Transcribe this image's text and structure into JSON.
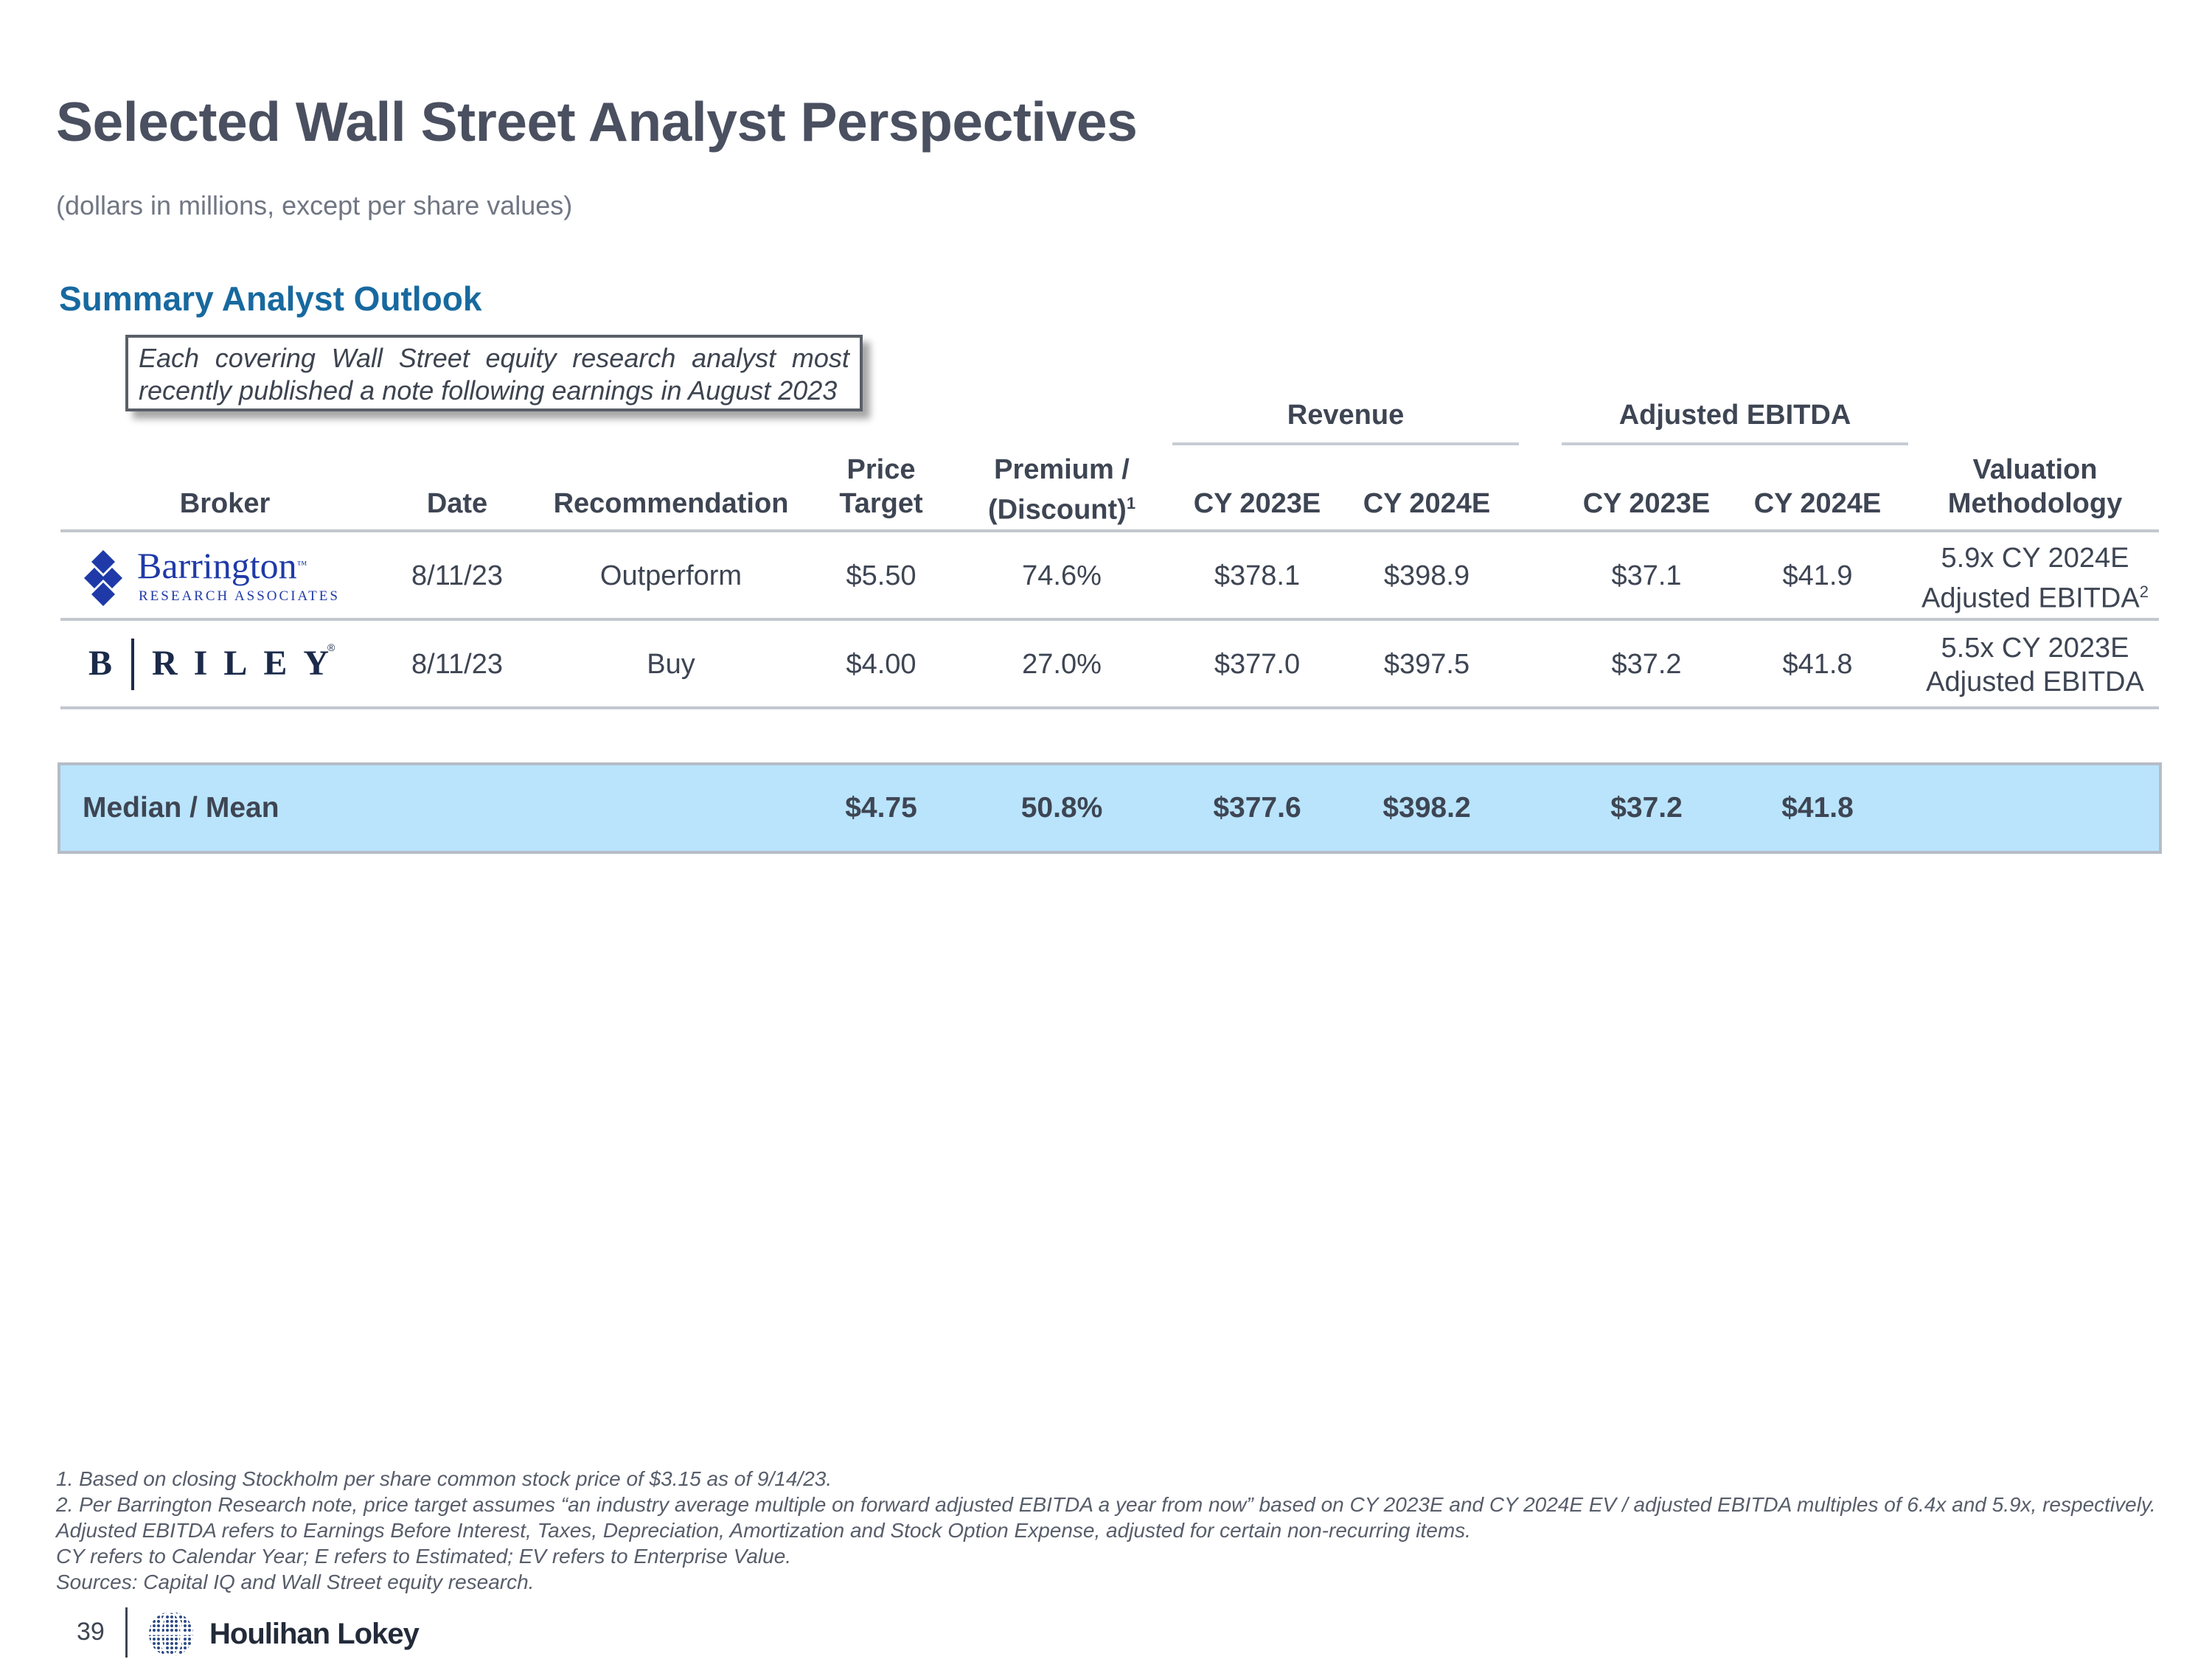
{
  "page": {
    "title": "Selected Wall Street Analyst Perspectives",
    "subtitle": "(dollars in millions, except per share values)",
    "section_title": "Summary Analyst Outlook",
    "note_line1_words": [
      "Each",
      "covering",
      "Wall",
      "Street",
      "equity",
      "research",
      "analyst",
      "most"
    ],
    "note_line2": "recently published a note following earnings in August 2023"
  },
  "table": {
    "group_revenue": "Revenue",
    "group_ebitda": "Adjusted EBITDA",
    "headers": {
      "broker": "Broker",
      "date": "Date",
      "recommendation": "Recommendation",
      "price_target_1": "Price",
      "price_target_2": "Target",
      "premium_1": "Premium /",
      "premium_2": "(Discount)",
      "premium_sup": "1",
      "rev_2023": "CY 2023E",
      "rev_2024": "CY 2024E",
      "ebitda_2023": "CY 2023E",
      "ebitda_2024": "CY 2024E",
      "valuation_1": "Valuation",
      "valuation_2": "Methodology"
    },
    "rows": [
      {
        "logo_name": "Barrington",
        "logo_tagline": "RESEARCH ASSOCIATES",
        "logo_tm": "™",
        "date": "8/11/23",
        "recommendation": "Outperform",
        "price_target": "$5.50",
        "premium": "74.6%",
        "rev_2023": "$378.1",
        "rev_2024": "$398.9",
        "ebitda_2023": "$37.1",
        "ebitda_2024": "$41.9",
        "valuation_1": "5.9x CY 2024E",
        "valuation_2": "Adjusted EBITDA",
        "valuation_sup": "2"
      },
      {
        "logo_b": "B",
        "logo_name": "RILEY",
        "logo_tm": "®",
        "date": "8/11/23",
        "recommendation": "Buy",
        "price_target": "$4.00",
        "premium": "27.0%",
        "rev_2023": "$377.0",
        "rev_2024": "$397.5",
        "ebitda_2023": "$37.2",
        "ebitda_2024": "$41.8",
        "valuation_1": "5.5x CY 2023E",
        "valuation_2": "Adjusted EBITDA"
      }
    ],
    "summary": {
      "label": "Median / Mean",
      "price_target": "$4.75",
      "premium": "50.8%",
      "rev_2023": "$377.6",
      "rev_2024": "$398.2",
      "ebitda_2023": "$37.2",
      "ebitda_2024": "$41.8"
    }
  },
  "footnotes": [
    "1.  Based on closing Stockholm per share common stock price of $3.15 as of 9/14/23.",
    "2.  Per Barrington Research note, price target assumes “an industry average multiple on forward adjusted EBITDA a year from now” based on CY 2023E and CY 2024E EV / adjusted EBITDA multiples of 6.4x and 5.9x, respectively.",
    "Adjusted EBITDA refers to Earnings Before Interest, Taxes, Depreciation, Amortization and Stock Option Expense, adjusted for certain non-recurring items.",
    "CY refers to Calendar Year; E refers to Estimated; EV refers to Enterprise Value.",
    "Sources: Capital IQ and Wall Street equity research."
  ],
  "footer": {
    "page_number": "39",
    "brand": "Houlihan Lokey"
  },
  "colors": {
    "title": "#4a5060",
    "section_title": "#17699f",
    "median_band": "#b9e4fc",
    "barrington_blue": "#1f3aa8",
    "riley_navy": "#1b2a4a"
  }
}
